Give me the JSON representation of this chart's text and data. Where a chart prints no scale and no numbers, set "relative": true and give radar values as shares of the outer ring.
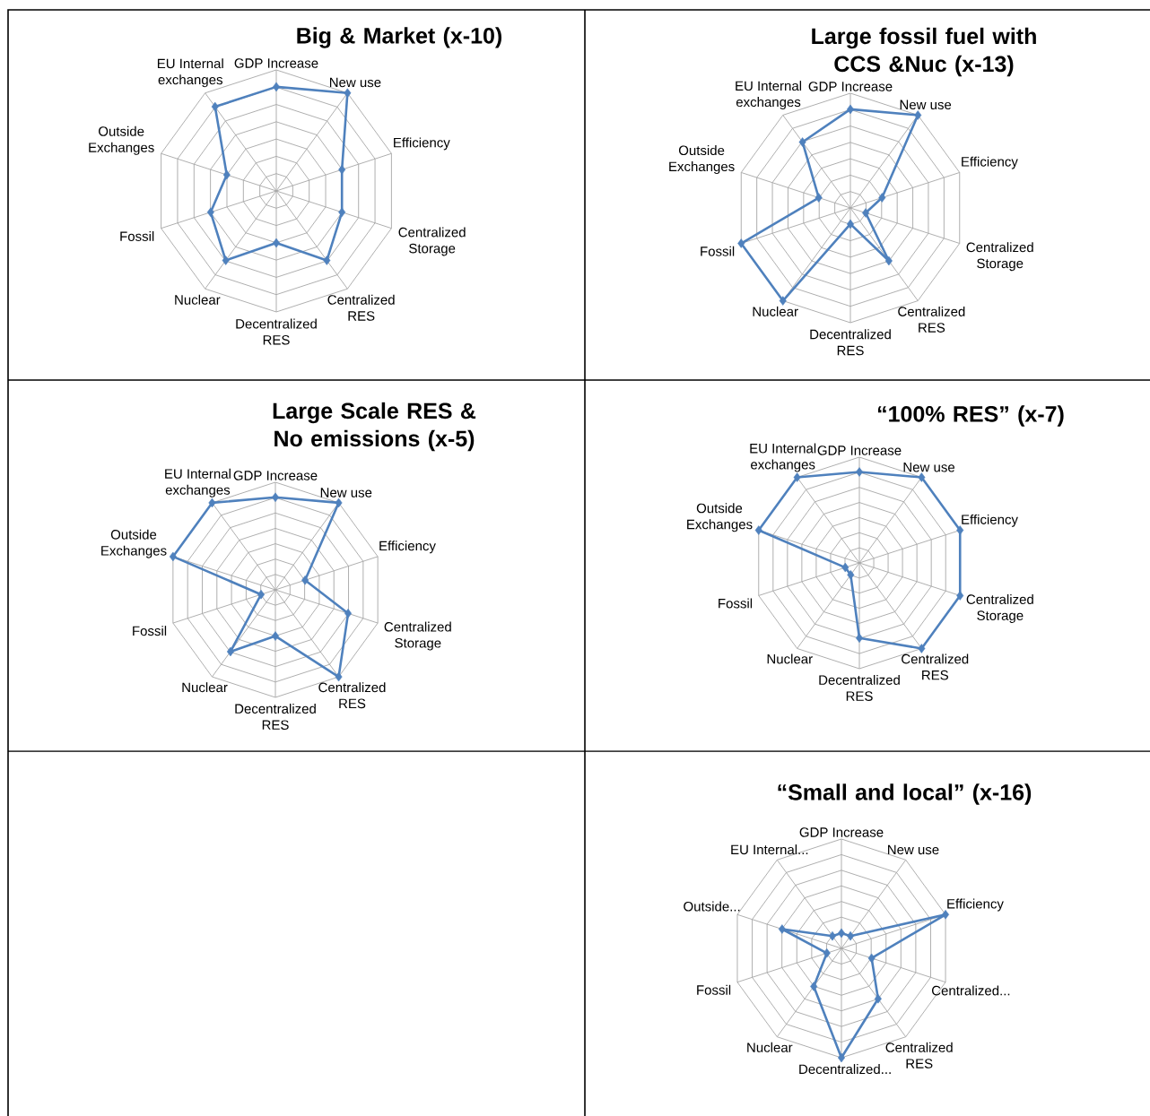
{
  "chart_data": [
    {
      "type": "radar",
      "title": "Big & Market (x-10)",
      "relative": true,
      "marker": "diamond",
      "categories": [
        "GDP Increase",
        "New use",
        "Efficiency",
        "Centralized Storage",
        "Centralized RES",
        "Decentralized RES",
        "Nuclear",
        "Fossil",
        "Outside Exchanges",
        "EU Internal exchanges"
      ],
      "series": [
        {
          "color": "#4f81bd",
          "values": [
            0.86,
            1,
            0.57,
            0.57,
            0.71,
            0.43,
            0.71,
            0.57,
            0.43,
            0.86
          ]
        }
      ]
    },
    {
      "type": "radar",
      "title": "Large fossil fuel with CCS &Nuc (x-13)",
      "relative": true,
      "marker": "diamond",
      "categories": [
        "GDP Increase",
        "New use",
        "Efficiency",
        "Centralized Storage",
        "Centralized RES",
        "Decentralized RES",
        "Nuclear",
        "Fossil",
        "Outside Exchanges",
        "EU Internal exchanges"
      ],
      "series": [
        {
          "color": "#4f81bd",
          "values": [
            0.86,
            1,
            0.29,
            0.14,
            0.57,
            0.14,
            1,
            1,
            0.29,
            0.71
          ]
        }
      ]
    },
    {
      "type": "radar",
      "title": "Large Scale RES & No emissions (x-5)",
      "relative": true,
      "marker": "diamond",
      "categories": [
        "GDP Increase",
        "New use",
        "Efficiency",
        "Centralized Storage",
        "Centralized RES",
        "Decentralized RES",
        "Nuclear",
        "Fossil",
        "Outside Exchanges",
        "EU Internal exchanges"
      ],
      "series": [
        {
          "color": "#4f81bd",
          "values": [
            0.86,
            1,
            0.29,
            0.71,
            1,
            0.43,
            0.71,
            0.14,
            1,
            1
          ]
        }
      ]
    },
    {
      "type": "radar",
      "title": "“100% RES” (x-7)",
      "relative": true,
      "marker": "diamond",
      "categories": [
        "GDP Increase",
        "New use",
        "Efficiency",
        "Centralized Storage",
        "Centralized RES",
        "Decentralized RES",
        "Nuclear",
        "Fossil",
        "Outside Exchanges",
        "EU Internal exchanges"
      ],
      "series": [
        {
          "color": "#4f81bd",
          "values": [
            0.86,
            1,
            1,
            1,
            1,
            0.71,
            0.14,
            0.14,
            1,
            1
          ]
        }
      ]
    },
    {
      "type": "radar",
      "title": "“Small and local” (x-16)",
      "relative": true,
      "marker": "diamond",
      "categories": [
        "GDP Increase",
        "New use",
        "Efficiency",
        "Centralized...",
        "Centralized RES",
        "Decentralized...",
        "Nuclear",
        "Fossil",
        "Outside...",
        "EU Internal..."
      ],
      "series": [
        {
          "color": "#4f81bd",
          "values": [
            0.14,
            0.14,
            1,
            0.29,
            0.57,
            1,
            0.43,
            0.14,
            0.57,
            0.14
          ]
        }
      ]
    }
  ]
}
